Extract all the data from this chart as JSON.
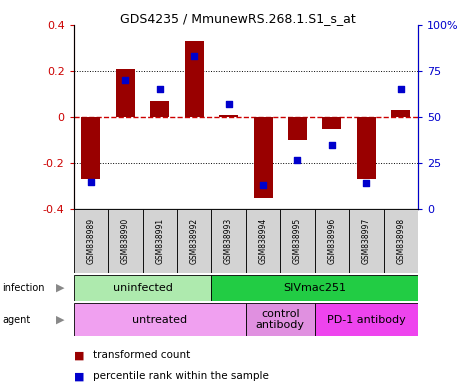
{
  "title": "GDS4235 / MmunewRS.268.1.S1_s_at",
  "samples": [
    "GSM838989",
    "GSM838990",
    "GSM838991",
    "GSM838992",
    "GSM838993",
    "GSM838994",
    "GSM838995",
    "GSM838996",
    "GSM838997",
    "GSM838998"
  ],
  "red_bars": [
    -0.27,
    0.21,
    0.07,
    0.33,
    0.01,
    -0.35,
    -0.1,
    -0.05,
    -0.27,
    0.03
  ],
  "blue_dots_pct": [
    15,
    70,
    65,
    83,
    57,
    13,
    27,
    35,
    14,
    65
  ],
  "ylim": [
    -0.4,
    0.4
  ],
  "y2lim": [
    0,
    100
  ],
  "yticks": [
    -0.4,
    -0.2,
    0.0,
    0.2,
    0.4
  ],
  "ytick_labels": [
    "-0.4",
    "-0.2",
    "0",
    "0.2",
    "0.4"
  ],
  "y2ticks": [
    0,
    25,
    50,
    75,
    100
  ],
  "y2ticklabels": [
    "0",
    "25",
    "50",
    "75",
    "100%"
  ],
  "hline_color": "#cc0000",
  "bar_color": "#990000",
  "dot_color": "#0000cc",
  "grid_color": "black",
  "infection_groups": [
    {
      "label": "uninfected",
      "start": 0,
      "end": 4,
      "color": "#aeeaae"
    },
    {
      "label": "SIVmac251",
      "start": 4,
      "end": 10,
      "color": "#22cc44"
    }
  ],
  "agent_groups": [
    {
      "label": "untreated",
      "start": 0,
      "end": 5,
      "color": "#f0a0f0"
    },
    {
      "label": "control\nantibody",
      "start": 5,
      "end": 7,
      "color": "#e090e0"
    },
    {
      "label": "PD-1 antibody",
      "start": 7,
      "end": 10,
      "color": "#ee44ee"
    }
  ],
  "infection_label": "infection",
  "agent_label": "agent",
  "legend_items": [
    {
      "color": "#990000",
      "label": "transformed count"
    },
    {
      "color": "#0000cc",
      "label": "percentile rank within the sample"
    }
  ],
  "background_color": "#ffffff",
  "tick_label_color_left": "#cc0000",
  "tick_label_color_right": "#0000cc",
  "sample_box_color": "#d3d3d3"
}
